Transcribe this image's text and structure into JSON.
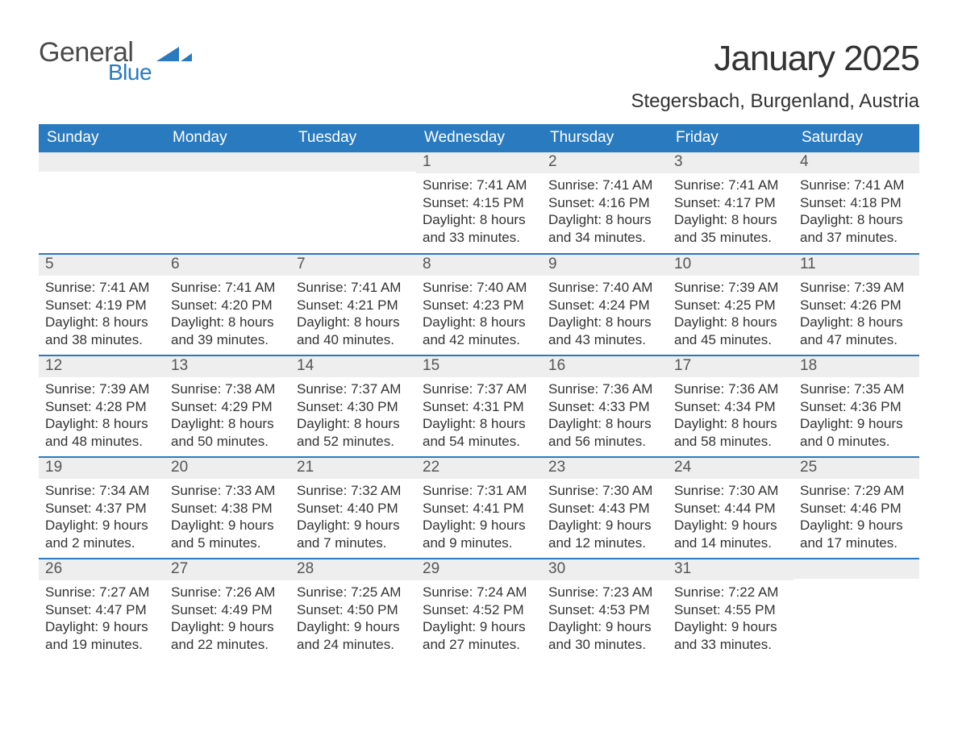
{
  "brand": {
    "word1": "General",
    "word2": "Blue",
    "text_color": "#4a4a4a",
    "accent_color": "#2a7ac0"
  },
  "title": "January 2025",
  "location": "Stegersbach, Burgenland, Austria",
  "colors": {
    "header_bg": "#2a7ac0",
    "header_text": "#ffffff",
    "daynum_bg": "#eeeeee",
    "row_border": "#2a7ac0",
    "body_text": "#333333",
    "page_bg": "#ffffff"
  },
  "typography": {
    "title_fontsize": 44,
    "location_fontsize": 24,
    "dayheader_fontsize": 19,
    "daynum_fontsize": 19,
    "body_fontsize": 17,
    "font_family": "Arial"
  },
  "day_headers": [
    "Sunday",
    "Monday",
    "Tuesday",
    "Wednesday",
    "Thursday",
    "Friday",
    "Saturday"
  ],
  "weeks": [
    [
      null,
      null,
      null,
      {
        "n": "1",
        "sunrise": "Sunrise: 7:41 AM",
        "sunset": "Sunset: 4:15 PM",
        "dl1": "Daylight: 8 hours",
        "dl2": "and 33 minutes."
      },
      {
        "n": "2",
        "sunrise": "Sunrise: 7:41 AM",
        "sunset": "Sunset: 4:16 PM",
        "dl1": "Daylight: 8 hours",
        "dl2": "and 34 minutes."
      },
      {
        "n": "3",
        "sunrise": "Sunrise: 7:41 AM",
        "sunset": "Sunset: 4:17 PM",
        "dl1": "Daylight: 8 hours",
        "dl2": "and 35 minutes."
      },
      {
        "n": "4",
        "sunrise": "Sunrise: 7:41 AM",
        "sunset": "Sunset: 4:18 PM",
        "dl1": "Daylight: 8 hours",
        "dl2": "and 37 minutes."
      }
    ],
    [
      {
        "n": "5",
        "sunrise": "Sunrise: 7:41 AM",
        "sunset": "Sunset: 4:19 PM",
        "dl1": "Daylight: 8 hours",
        "dl2": "and 38 minutes."
      },
      {
        "n": "6",
        "sunrise": "Sunrise: 7:41 AM",
        "sunset": "Sunset: 4:20 PM",
        "dl1": "Daylight: 8 hours",
        "dl2": "and 39 minutes."
      },
      {
        "n": "7",
        "sunrise": "Sunrise: 7:41 AM",
        "sunset": "Sunset: 4:21 PM",
        "dl1": "Daylight: 8 hours",
        "dl2": "and 40 minutes."
      },
      {
        "n": "8",
        "sunrise": "Sunrise: 7:40 AM",
        "sunset": "Sunset: 4:23 PM",
        "dl1": "Daylight: 8 hours",
        "dl2": "and 42 minutes."
      },
      {
        "n": "9",
        "sunrise": "Sunrise: 7:40 AM",
        "sunset": "Sunset: 4:24 PM",
        "dl1": "Daylight: 8 hours",
        "dl2": "and 43 minutes."
      },
      {
        "n": "10",
        "sunrise": "Sunrise: 7:39 AM",
        "sunset": "Sunset: 4:25 PM",
        "dl1": "Daylight: 8 hours",
        "dl2": "and 45 minutes."
      },
      {
        "n": "11",
        "sunrise": "Sunrise: 7:39 AM",
        "sunset": "Sunset: 4:26 PM",
        "dl1": "Daylight: 8 hours",
        "dl2": "and 47 minutes."
      }
    ],
    [
      {
        "n": "12",
        "sunrise": "Sunrise: 7:39 AM",
        "sunset": "Sunset: 4:28 PM",
        "dl1": "Daylight: 8 hours",
        "dl2": "and 48 minutes."
      },
      {
        "n": "13",
        "sunrise": "Sunrise: 7:38 AM",
        "sunset": "Sunset: 4:29 PM",
        "dl1": "Daylight: 8 hours",
        "dl2": "and 50 minutes."
      },
      {
        "n": "14",
        "sunrise": "Sunrise: 7:37 AM",
        "sunset": "Sunset: 4:30 PM",
        "dl1": "Daylight: 8 hours",
        "dl2": "and 52 minutes."
      },
      {
        "n": "15",
        "sunrise": "Sunrise: 7:37 AM",
        "sunset": "Sunset: 4:31 PM",
        "dl1": "Daylight: 8 hours",
        "dl2": "and 54 minutes."
      },
      {
        "n": "16",
        "sunrise": "Sunrise: 7:36 AM",
        "sunset": "Sunset: 4:33 PM",
        "dl1": "Daylight: 8 hours",
        "dl2": "and 56 minutes."
      },
      {
        "n": "17",
        "sunrise": "Sunrise: 7:36 AM",
        "sunset": "Sunset: 4:34 PM",
        "dl1": "Daylight: 8 hours",
        "dl2": "and 58 minutes."
      },
      {
        "n": "18",
        "sunrise": "Sunrise: 7:35 AM",
        "sunset": "Sunset: 4:36 PM",
        "dl1": "Daylight: 9 hours",
        "dl2": "and 0 minutes."
      }
    ],
    [
      {
        "n": "19",
        "sunrise": "Sunrise: 7:34 AM",
        "sunset": "Sunset: 4:37 PM",
        "dl1": "Daylight: 9 hours",
        "dl2": "and 2 minutes."
      },
      {
        "n": "20",
        "sunrise": "Sunrise: 7:33 AM",
        "sunset": "Sunset: 4:38 PM",
        "dl1": "Daylight: 9 hours",
        "dl2": "and 5 minutes."
      },
      {
        "n": "21",
        "sunrise": "Sunrise: 7:32 AM",
        "sunset": "Sunset: 4:40 PM",
        "dl1": "Daylight: 9 hours",
        "dl2": "and 7 minutes."
      },
      {
        "n": "22",
        "sunrise": "Sunrise: 7:31 AM",
        "sunset": "Sunset: 4:41 PM",
        "dl1": "Daylight: 9 hours",
        "dl2": "and 9 minutes."
      },
      {
        "n": "23",
        "sunrise": "Sunrise: 7:30 AM",
        "sunset": "Sunset: 4:43 PM",
        "dl1": "Daylight: 9 hours",
        "dl2": "and 12 minutes."
      },
      {
        "n": "24",
        "sunrise": "Sunrise: 7:30 AM",
        "sunset": "Sunset: 4:44 PM",
        "dl1": "Daylight: 9 hours",
        "dl2": "and 14 minutes."
      },
      {
        "n": "25",
        "sunrise": "Sunrise: 7:29 AM",
        "sunset": "Sunset: 4:46 PM",
        "dl1": "Daylight: 9 hours",
        "dl2": "and 17 minutes."
      }
    ],
    [
      {
        "n": "26",
        "sunrise": "Sunrise: 7:27 AM",
        "sunset": "Sunset: 4:47 PM",
        "dl1": "Daylight: 9 hours",
        "dl2": "and 19 minutes."
      },
      {
        "n": "27",
        "sunrise": "Sunrise: 7:26 AM",
        "sunset": "Sunset: 4:49 PM",
        "dl1": "Daylight: 9 hours",
        "dl2": "and 22 minutes."
      },
      {
        "n": "28",
        "sunrise": "Sunrise: 7:25 AM",
        "sunset": "Sunset: 4:50 PM",
        "dl1": "Daylight: 9 hours",
        "dl2": "and 24 minutes."
      },
      {
        "n": "29",
        "sunrise": "Sunrise: 7:24 AM",
        "sunset": "Sunset: 4:52 PM",
        "dl1": "Daylight: 9 hours",
        "dl2": "and 27 minutes."
      },
      {
        "n": "30",
        "sunrise": "Sunrise: 7:23 AM",
        "sunset": "Sunset: 4:53 PM",
        "dl1": "Daylight: 9 hours",
        "dl2": "and 30 minutes."
      },
      {
        "n": "31",
        "sunrise": "Sunrise: 7:22 AM",
        "sunset": "Sunset: 4:55 PM",
        "dl1": "Daylight: 9 hours",
        "dl2": "and 33 minutes."
      },
      null
    ]
  ]
}
